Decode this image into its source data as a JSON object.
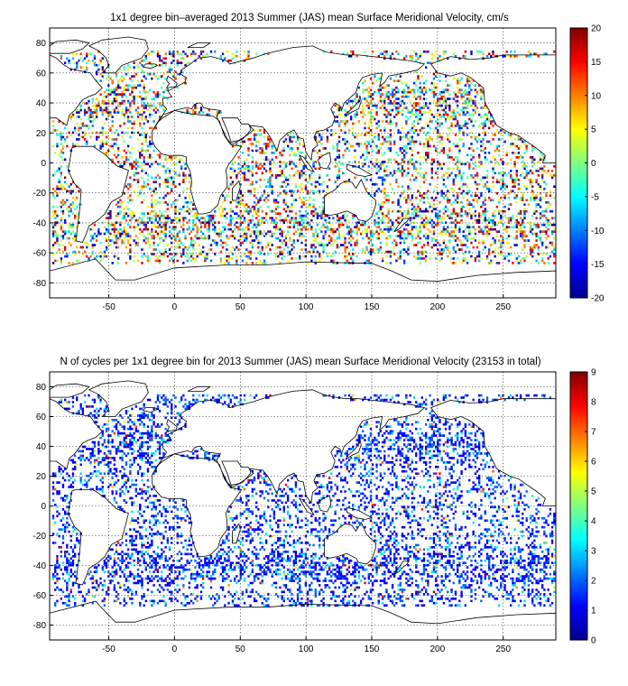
{
  "chart_data": [
    {
      "type": "heatmap",
      "title": "1x1 degree bin–averaged 2013 Summer (JAS) mean Surface Meridional Velocity, cm/s",
      "xlim": [
        -95,
        290
      ],
      "ylim": [
        -90,
        90
      ],
      "xticks": [
        -50,
        0,
        50,
        100,
        150,
        200,
        250
      ],
      "yticks": [
        80,
        60,
        40,
        20,
        0,
        -20,
        -40,
        -60,
        -80
      ],
      "grid": true,
      "colormap": "jet",
      "colorbar": {
        "min": -20,
        "max": 20,
        "ticks": [
          20,
          15,
          10,
          5,
          0,
          -5,
          -10,
          -15,
          -20
        ],
        "placement": "right"
      },
      "data_description": "scattered 1x1 degree bins with mean meridional velocity ranging from about -20 to 20 cm/s over ocean regions"
    },
    {
      "type": "heatmap",
      "title": "N of cycles per 1x1 degree bin for 2013 Summer (JAS) mean Surface Meridional Velocity (23153 in total)",
      "xlim": [
        -95,
        290
      ],
      "ylim": [
        -90,
        90
      ],
      "xticks": [
        -50,
        0,
        50,
        100,
        150,
        200,
        250
      ],
      "yticks": [
        80,
        60,
        40,
        20,
        0,
        -20,
        -40,
        -60,
        -80
      ],
      "grid": true,
      "colormap": "jet",
      "colorbar": {
        "min": 0,
        "max": 9,
        "ticks": [
          9,
          8,
          7,
          6,
          5,
          4,
          3,
          2,
          1,
          0
        ],
        "placement": "right"
      },
      "total_cycles": 23153,
      "data_description": "count of cycles per bin, mostly 1-3, with sparse higher counts up to 9"
    }
  ]
}
